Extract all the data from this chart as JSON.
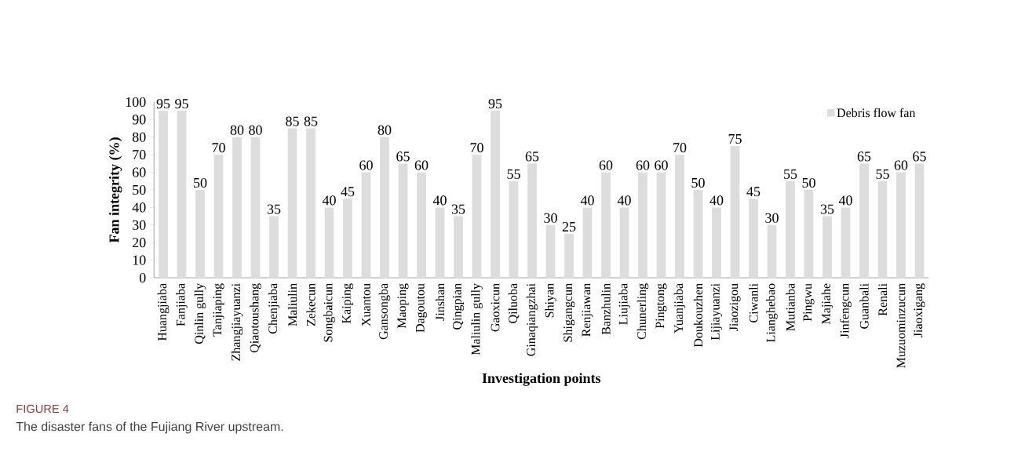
{
  "chart_data": {
    "type": "bar",
    "xlabel": "Investigation points",
    "ylabel": "Fan integrity (%)",
    "categories": [
      "Huangjiaba",
      "Fanjiaba",
      "Qinlin gully",
      "Tanjiaping",
      "Zhangjiayuanzi",
      "Qiaotoushang",
      "Chenjiaba",
      "Maliulin",
      "Zekecun",
      "Songbaicun",
      "Kaiping",
      "Xuantou",
      "Gansongba",
      "Maoping",
      "Dagoutou",
      "Jinshan",
      "Qingpian",
      "Maliulin gully",
      "Gaoxicun",
      "Qiluoba",
      "Ginaqiangzhai",
      "Shiyan",
      "Shigangcun",
      "Renjiawan",
      "Banzhulin",
      "Liujiaba",
      "Chunerling",
      "Pingtong",
      "Yuanjiaba",
      "Doukouzhen",
      "Lijiayuanzi",
      "Jiaozigou",
      "Ciwanli",
      "Lianghebao",
      "Mutianba",
      "Pingwu",
      "Majiahe",
      "Jinfengcun",
      "Guanbali",
      "Renali",
      "Muzuominzucun",
      "Jiaoxigang"
    ],
    "series": [
      {
        "name": "Debris flow fan",
        "color": "#dddddd",
        "values": [
          95,
          95,
          50,
          70,
          80,
          80,
          35,
          85,
          85,
          40,
          45,
          60,
          80,
          65,
          60,
          40,
          35,
          70,
          95,
          55,
          65,
          30,
          25,
          40,
          60,
          40,
          60,
          60,
          70,
          50,
          40,
          75,
          45,
          30,
          55,
          50,
          35,
          40,
          65,
          55,
          60,
          65
        ]
      }
    ],
    "ylim": [
      0,
      100
    ],
    "yticks": [
      0,
      10,
      20,
      30,
      40,
      50,
      60,
      70,
      80,
      90,
      100
    ],
    "data_labels": true,
    "legend": "top right",
    "annotations": [
      "FIGURE 4",
      "The disaster fans of the Fujiang River upstream."
    ]
  }
}
